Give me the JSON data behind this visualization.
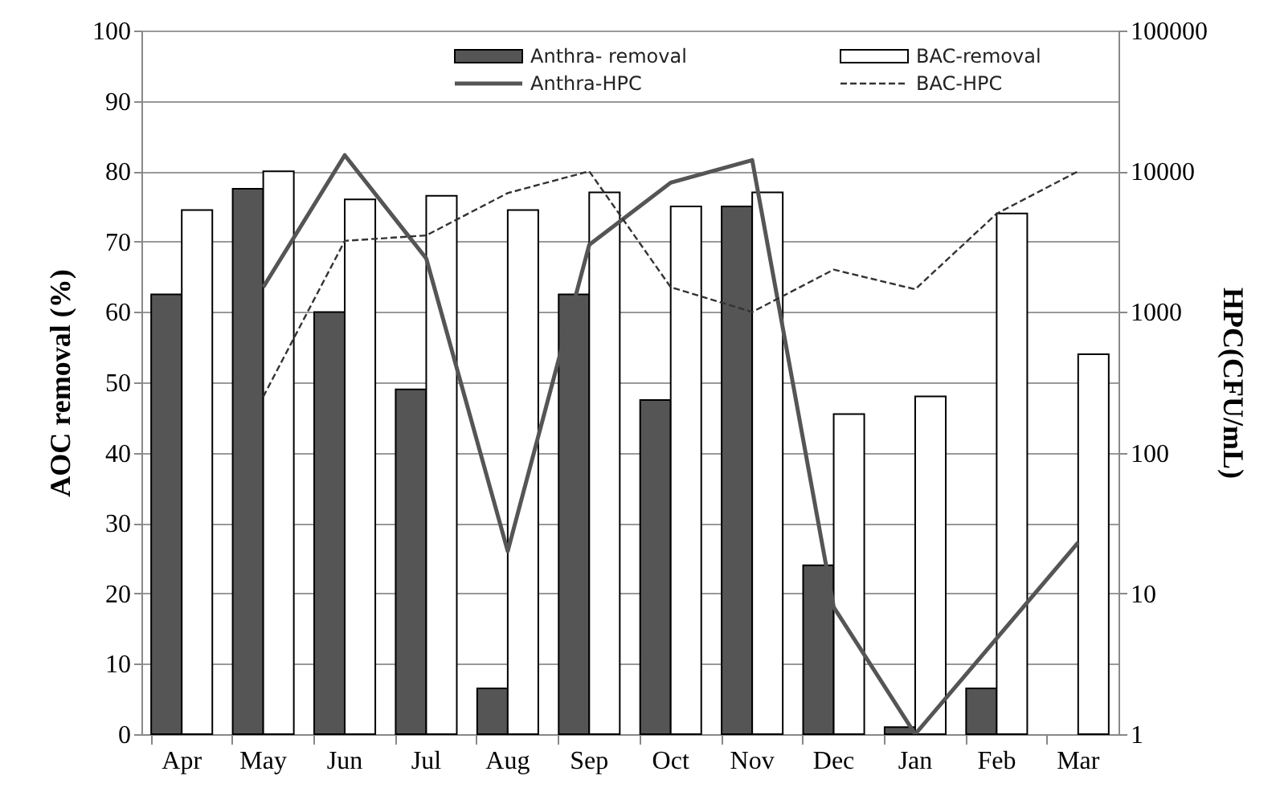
{
  "chart_data": {
    "type": "bar",
    "categories": [
      "Apr",
      "May",
      "Jun",
      "Jul",
      "Aug",
      "Sep",
      "Oct",
      "Nov",
      "Dec",
      "Jan",
      "Feb",
      "Mar"
    ],
    "ylabel": "AOC removal (%)",
    "y2label": "HPC(CFU/mL)",
    "ylim": [
      0,
      100
    ],
    "yticks": [
      0,
      10,
      20,
      30,
      40,
      50,
      60,
      70,
      80,
      90,
      100
    ],
    "y2lim": [
      1,
      100000
    ],
    "y2ticks": [
      1,
      10,
      100,
      1000,
      10000,
      100000
    ],
    "log": "y2",
    "grid": "y",
    "legend": "top",
    "series": [
      {
        "name": "Anthra- removal",
        "type": "bar",
        "color": "#555555",
        "values": [
          62.5,
          77.5,
          60,
          49,
          6.5,
          62.5,
          47.5,
          75,
          24,
          1,
          6.5,
          null
        ]
      },
      {
        "name": "BAC-removal",
        "type": "bar",
        "color": "#ffffff",
        "values": [
          74.5,
          80,
          76,
          76.5,
          74.5,
          77,
          75,
          77,
          45.5,
          48,
          74,
          54
        ]
      },
      {
        "name": "Anthra-HPC",
        "type": "line",
        "axis": "y2",
        "line_style": "solid",
        "color": "#555555",
        "values": [
          null,
          1500,
          13000,
          2400,
          20,
          3000,
          8300,
          12000,
          8,
          1,
          null,
          23
        ]
      },
      {
        "name": "BAC-HPC",
        "type": "line",
        "axis": "y2",
        "line_style": "dashed",
        "color": "#333333",
        "values": [
          null,
          250,
          3200,
          3500,
          7000,
          10000,
          1500,
          1000,
          2000,
          1450,
          5000,
          10000
        ]
      }
    ]
  }
}
